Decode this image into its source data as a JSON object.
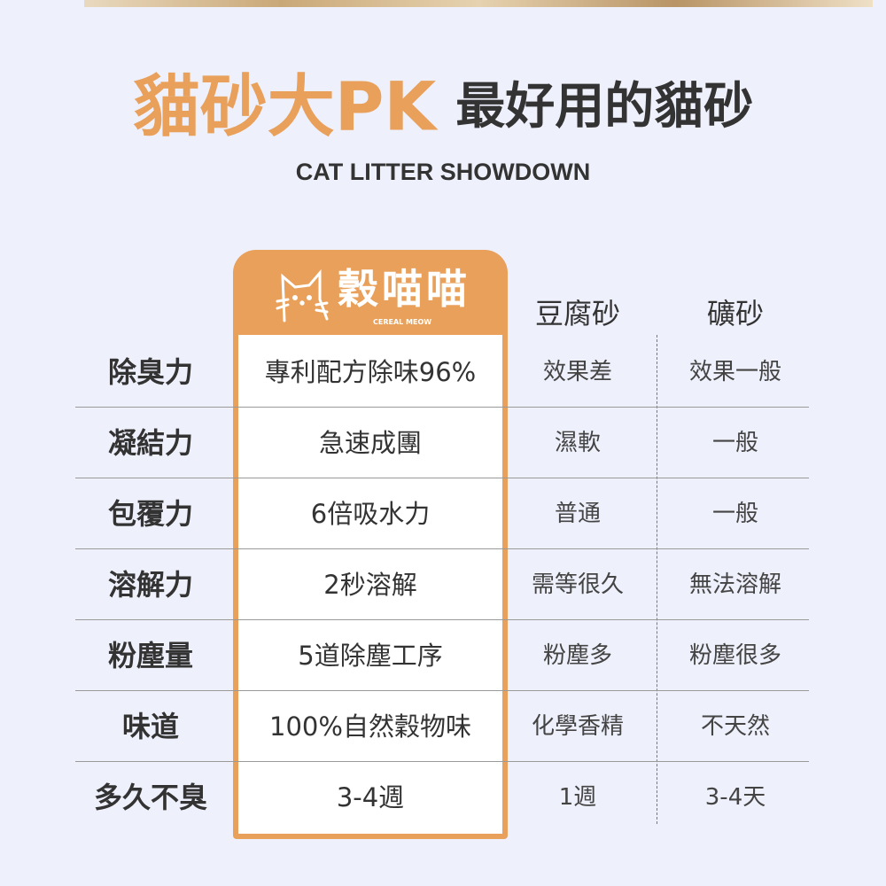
{
  "title": {
    "highlight": "貓砂大PK",
    "rest": "最好用的貓砂",
    "subtitle": "CAT LITTER SHOWDOWN"
  },
  "brand": {
    "name": "穀喵喵",
    "tagline": "CEREAL MEOW",
    "icon": "cat-icon"
  },
  "columns": [
    "豆腐砂",
    "礦砂"
  ],
  "rows": [
    {
      "label": "除臭力",
      "brand": "專利配方除味96%",
      "tofu": "效果差",
      "mineral": "效果一般"
    },
    {
      "label": "凝結力",
      "brand": "急速成團",
      "tofu": "濕軟",
      "mineral": "一般"
    },
    {
      "label": "包覆力",
      "brand": "6倍吸水力",
      "tofu": "普通",
      "mineral": "一般"
    },
    {
      "label": "溶解力",
      "brand": "2秒溶解",
      "tofu": "需等很久",
      "mineral": "無法溶解"
    },
    {
      "label": "粉塵量",
      "brand": "5道除塵工序",
      "tofu": "粉塵多",
      "mineral": "粉塵很多"
    },
    {
      "label": "味道",
      "brand": "100%自然穀物味",
      "tofu": "化學香精",
      "mineral": "不天然"
    },
    {
      "label": "多久不臭",
      "brand": "3-4週",
      "tofu": "1週",
      "mineral": "3-4天"
    }
  ],
  "colors": {
    "accent": "#e8a05a",
    "background": "#eef0fb"
  }
}
